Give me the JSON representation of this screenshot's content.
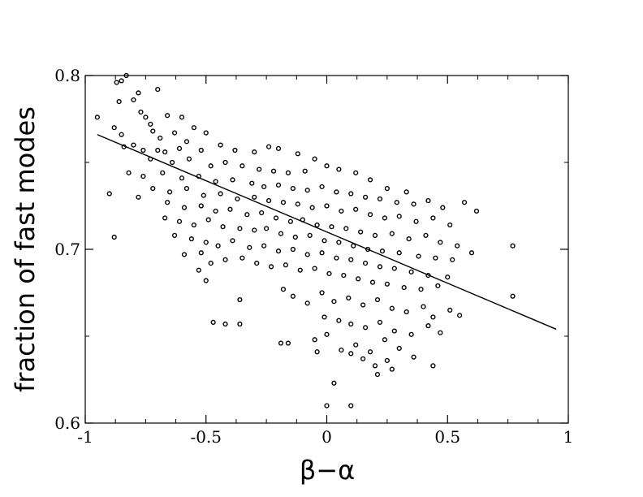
{
  "chart_data": {
    "type": "scatter",
    "title": "",
    "xlabel": "β−α",
    "ylabel": "fraction of fast modes",
    "xlim": [
      -1,
      1
    ],
    "ylim": [
      0.6,
      0.8
    ],
    "x_ticks": [
      -1,
      -0.5,
      0,
      0.5,
      1
    ],
    "x_tick_labels": [
      "-1",
      "-0.5",
      "0",
      "0.5",
      "1"
    ],
    "y_ticks": [
      0.6,
      0.7,
      0.8
    ],
    "y_tick_labels": [
      "0.6",
      "0.7",
      "0.8"
    ],
    "grid": false,
    "legend": "none",
    "fit_line": {
      "x": [
        -0.95,
        0.95
      ],
      "y": [
        0.766,
        0.654
      ]
    },
    "points": [
      [
        -0.85,
        0.797
      ],
      [
        -0.87,
        0.796
      ],
      [
        -0.83,
        0.8
      ],
      [
        -0.7,
        0.792
      ],
      [
        -0.78,
        0.79
      ],
      [
        -0.8,
        0.786
      ],
      [
        -0.86,
        0.785
      ],
      [
        -0.77,
        0.779
      ],
      [
        -0.75,
        0.776
      ],
      [
        -0.95,
        0.776
      ],
      [
        -0.66,
        0.777
      ],
      [
        -0.73,
        0.772
      ],
      [
        -0.6,
        0.776
      ],
      [
        -0.88,
        0.77
      ],
      [
        -0.72,
        0.768
      ],
      [
        -0.85,
        0.766
      ],
      [
        -0.69,
        0.764
      ],
      [
        -0.63,
        0.767
      ],
      [
        -0.55,
        0.77
      ],
      [
        -0.5,
        0.767
      ],
      [
        -0.58,
        0.762
      ],
      [
        -0.8,
        0.76
      ],
      [
        -0.76,
        0.757
      ],
      [
        -0.67,
        0.756
      ],
      [
        -0.61,
        0.758
      ],
      [
        -0.52,
        0.757
      ],
      [
        -0.44,
        0.76
      ],
      [
        -0.38,
        0.757
      ],
      [
        -0.3,
        0.756
      ],
      [
        -0.24,
        0.759
      ],
      [
        -0.2,
        0.758
      ],
      [
        -0.12,
        0.755
      ],
      [
        -0.05,
        0.752
      ],
      [
        -0.73,
        0.752
      ],
      [
        -0.64,
        0.75
      ],
      [
        -0.57,
        0.752
      ],
      [
        -0.48,
        0.748
      ],
      [
        -0.42,
        0.75
      ],
      [
        -0.35,
        0.748
      ],
      [
        -0.28,
        0.746
      ],
      [
        -0.22,
        0.745
      ],
      [
        -0.16,
        0.744
      ],
      [
        -0.09,
        0.745
      ],
      [
        0.0,
        0.748
      ],
      [
        0.05,
        0.746
      ],
      [
        0.12,
        0.744
      ],
      [
        0.18,
        0.74
      ],
      [
        0.25,
        0.735
      ],
      [
        0.33,
        0.733
      ],
      [
        -0.82,
        0.744
      ],
      [
        -0.76,
        0.742
      ],
      [
        -0.68,
        0.744
      ],
      [
        -0.6,
        0.741
      ],
      [
        -0.53,
        0.742
      ],
      [
        -0.46,
        0.739
      ],
      [
        -0.39,
        0.74
      ],
      [
        -0.31,
        0.738
      ],
      [
        -0.26,
        0.736
      ],
      [
        -0.2,
        0.737
      ],
      [
        -0.14,
        0.735
      ],
      [
        -0.08,
        0.734
      ],
      [
        -0.02,
        0.736
      ],
      [
        0.04,
        0.733
      ],
      [
        0.1,
        0.732
      ],
      [
        0.16,
        0.73
      ],
      [
        0.22,
        0.729
      ],
      [
        0.29,
        0.727
      ],
      [
        0.36,
        0.726
      ],
      [
        0.42,
        0.728
      ],
      [
        0.48,
        0.724
      ],
      [
        0.57,
        0.727
      ],
      [
        -0.72,
        0.735
      ],
      [
        -0.65,
        0.733
      ],
      [
        -0.58,
        0.735
      ],
      [
        -0.51,
        0.731
      ],
      [
        -0.44,
        0.732
      ],
      [
        -0.37,
        0.729
      ],
      [
        -0.3,
        0.73
      ],
      [
        -0.24,
        0.728
      ],
      [
        -0.18,
        0.727
      ],
      [
        -0.12,
        0.726
      ],
      [
        -0.06,
        0.724
      ],
      [
        0.0,
        0.725
      ],
      [
        0.06,
        0.722
      ],
      [
        0.12,
        0.723
      ],
      [
        0.18,
        0.72
      ],
      [
        0.24,
        0.718
      ],
      [
        0.3,
        0.719
      ],
      [
        0.37,
        0.716
      ],
      [
        0.44,
        0.718
      ],
      [
        0.51,
        0.714
      ],
      [
        0.62,
        0.722
      ],
      [
        -0.9,
        0.732
      ],
      [
        -0.78,
        0.73
      ],
      [
        -0.66,
        0.727
      ],
      [
        -0.59,
        0.724
      ],
      [
        -0.52,
        0.725
      ],
      [
        -0.46,
        0.722
      ],
      [
        -0.4,
        0.723
      ],
      [
        -0.33,
        0.72
      ],
      [
        -0.27,
        0.721
      ],
      [
        -0.21,
        0.718
      ],
      [
        -0.15,
        0.716
      ],
      [
        -0.1,
        0.717
      ],
      [
        -0.04,
        0.714
      ],
      [
        0.02,
        0.713
      ],
      [
        0.08,
        0.712
      ],
      [
        0.14,
        0.71
      ],
      [
        0.2,
        0.708
      ],
      [
        0.27,
        0.709
      ],
      [
        0.34,
        0.706
      ],
      [
        0.41,
        0.708
      ],
      [
        0.47,
        0.704
      ],
      [
        0.54,
        0.702
      ],
      [
        -0.67,
        0.718
      ],
      [
        -0.61,
        0.716
      ],
      [
        -0.55,
        0.714
      ],
      [
        -0.49,
        0.717
      ],
      [
        -0.43,
        0.713
      ],
      [
        -0.36,
        0.712
      ],
      [
        -0.3,
        0.711
      ],
      [
        -0.25,
        0.712
      ],
      [
        -0.19,
        0.709
      ],
      [
        -0.13,
        0.707
      ],
      [
        -0.07,
        0.708
      ],
      [
        -0.01,
        0.705
      ],
      [
        0.05,
        0.704
      ],
      [
        0.11,
        0.702
      ],
      [
        0.17,
        0.7
      ],
      [
        0.23,
        0.699
      ],
      [
        0.3,
        0.698
      ],
      [
        0.38,
        0.696
      ],
      [
        0.45,
        0.695
      ],
      [
        0.52,
        0.694
      ],
      [
        0.6,
        0.698
      ],
      [
        -0.63,
        0.708
      ],
      [
        -0.56,
        0.706
      ],
      [
        -0.5,
        0.704
      ],
      [
        -0.45,
        0.702
      ],
      [
        -0.39,
        0.705
      ],
      [
        -0.32,
        0.701
      ],
      [
        -0.26,
        0.702
      ],
      [
        -0.2,
        0.699
      ],
      [
        -0.14,
        0.7
      ],
      [
        -0.08,
        0.697
      ],
      [
        -0.02,
        0.698
      ],
      [
        0.04,
        0.695
      ],
      [
        0.1,
        0.694
      ],
      [
        0.16,
        0.692
      ],
      [
        0.22,
        0.69
      ],
      [
        0.28,
        0.689
      ],
      [
        0.35,
        0.687
      ],
      [
        0.42,
        0.685
      ],
      [
        0.5,
        0.684
      ],
      [
        -0.59,
        0.697
      ],
      [
        -0.52,
        0.698
      ],
      [
        -0.48,
        0.692
      ],
      [
        -0.42,
        0.694
      ],
      [
        -0.35,
        0.695
      ],
      [
        -0.29,
        0.692
      ],
      [
        -0.23,
        0.69
      ],
      [
        -0.17,
        0.691
      ],
      [
        -0.11,
        0.688
      ],
      [
        -0.05,
        0.689
      ],
      [
        0.01,
        0.686
      ],
      [
        0.07,
        0.685
      ],
      [
        0.13,
        0.683
      ],
      [
        0.19,
        0.681
      ],
      [
        0.25,
        0.68
      ],
      [
        0.32,
        0.678
      ],
      [
        0.39,
        0.677
      ],
      [
        0.46,
        0.679
      ],
      [
        -0.53,
        0.688
      ],
      [
        -0.5,
        0.682
      ],
      [
        -0.36,
        0.671
      ],
      [
        -0.18,
        0.677
      ],
      [
        -0.14,
        0.673
      ],
      [
        -0.08,
        0.669
      ],
      [
        -0.02,
        0.675
      ],
      [
        0.03,
        0.67
      ],
      [
        0.09,
        0.672
      ],
      [
        0.15,
        0.668
      ],
      [
        0.21,
        0.671
      ],
      [
        0.27,
        0.666
      ],
      [
        0.33,
        0.664
      ],
      [
        0.4,
        0.667
      ],
      [
        0.44,
        0.661
      ],
      [
        0.51,
        0.665
      ],
      [
        0.55,
        0.662
      ],
      [
        -0.47,
        0.658
      ],
      [
        -0.42,
        0.657
      ],
      [
        -0.36,
        0.657
      ],
      [
        -0.01,
        0.661
      ],
      [
        0.05,
        0.659
      ],
      [
        0.1,
        0.657
      ],
      [
        0.16,
        0.655
      ],
      [
        0.22,
        0.658
      ],
      [
        0.28,
        0.653
      ],
      [
        0.35,
        0.651
      ],
      [
        0.42,
        0.656
      ],
      [
        0.47,
        0.652
      ],
      [
        -0.19,
        0.646
      ],
      [
        -0.16,
        0.646
      ],
      [
        -0.05,
        0.648
      ],
      [
        0.0,
        0.651
      ],
      [
        0.06,
        0.642
      ],
      [
        0.12,
        0.645
      ],
      [
        0.18,
        0.641
      ],
      [
        0.24,
        0.648
      ],
      [
        0.3,
        0.643
      ],
      [
        -0.04,
        0.641
      ],
      [
        0.1,
        0.64
      ],
      [
        0.15,
        0.637
      ],
      [
        0.2,
        0.633
      ],
      [
        0.25,
        0.636
      ],
      [
        0.36,
        0.638
      ],
      [
        0.44,
        0.633
      ],
      [
        0.21,
        0.628
      ],
      [
        0.03,
        0.623
      ],
      [
        0.27,
        0.631
      ],
      [
        0.0,
        0.61
      ],
      [
        0.1,
        0.61
      ],
      [
        0.77,
        0.702
      ],
      [
        0.77,
        0.673
      ],
      [
        -0.88,
        0.707
      ],
      [
        -0.84,
        0.759
      ],
      [
        -0.7,
        0.757
      ]
    ]
  }
}
